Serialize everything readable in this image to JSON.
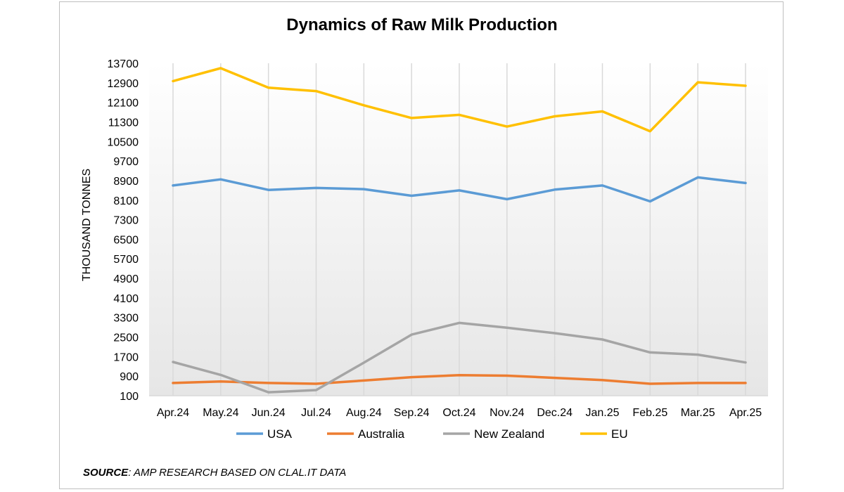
{
  "chart_data": {
    "type": "line",
    "title": "Dynamics of Raw Milk Production",
    "xlabel": "",
    "ylabel": "THOUSAND TONNES",
    "categories": [
      "Apr.24",
      "May.24",
      "Jun.24",
      "Jul.24",
      "Aug.24",
      "Sep.24",
      "Oct.24",
      "Nov.24",
      "Dec.24",
      "Jan.25",
      "Feb.25",
      "Mar.25",
      "Apr.25"
    ],
    "yticks": [
      "100",
      "900",
      "1700",
      "2500",
      "3300",
      "4100",
      "4900",
      "5700",
      "6500",
      "7300",
      "8100",
      "8900",
      "9700",
      "10500",
      "11300",
      "12100",
      "12900",
      "13700"
    ],
    "ylim": [
      100,
      13700
    ],
    "grid": "vertical",
    "legend_position": "bottom",
    "series": [
      {
        "name": "USA",
        "color": "#5b9bd5",
        "values": [
          8700,
          8950,
          8520,
          8600,
          8550,
          8280,
          8500,
          8140,
          8530,
          8700,
          8050,
          9030,
          8800
        ]
      },
      {
        "name": "Australia",
        "color": "#ed7d31",
        "values": [
          620,
          680,
          620,
          590,
          720,
          860,
          940,
          920,
          830,
          740,
          590,
          620,
          620
        ]
      },
      {
        "name": "New Zealand",
        "color": "#a5a5a5",
        "values": [
          1480,
          950,
          240,
          330,
          1450,
          2600,
          3080,
          2880,
          2660,
          2400,
          1870,
          1780,
          1460
        ]
      },
      {
        "name": "EU",
        "color": "#ffc000",
        "values": [
          12970,
          13500,
          12700,
          12560,
          11980,
          11460,
          11590,
          11110,
          11530,
          11730,
          10920,
          12920,
          12780
        ]
      }
    ]
  },
  "source": {
    "label": "SOURCE",
    "text": ": AMP RESEARCH BASED ON CLAL.IT DATA"
  }
}
